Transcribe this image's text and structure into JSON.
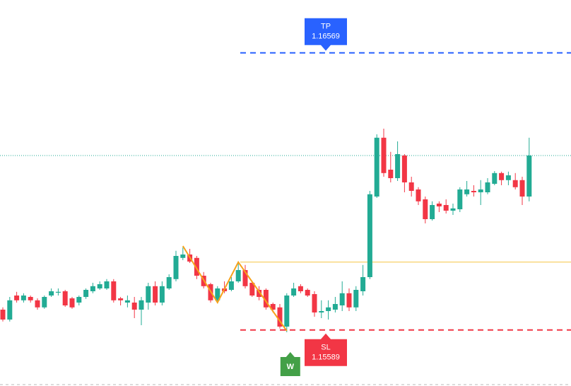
{
  "chart_data": {
    "type": "candlestick",
    "ylim": [
      1.15391,
      1.16756
    ],
    "up_color": "#22ab94",
    "down_color": "#f23645",
    "open": [
      1.15661,
      1.15626,
      1.15711,
      1.15694,
      1.15706,
      1.15694,
      1.15669,
      1.15711,
      1.15721,
      1.15726,
      1.15701,
      1.15686,
      1.15706,
      1.15726,
      1.15736,
      1.15736,
      1.15761,
      1.15701,
      1.15686,
      1.15686,
      1.15661,
      1.15686,
      1.15744,
      1.15686,
      1.15736,
      1.15769,
      1.15844,
      1.15856,
      1.15844,
      1.15781,
      1.15751,
      1.15694,
      1.15736,
      1.15731,
      1.15761,
      1.15801,
      1.15756,
      1.15731,
      1.15731,
      1.15681,
      1.15669,
      1.15601,
      1.15711,
      1.15744,
      1.15731,
      1.15716,
      1.15651,
      1.15656,
      1.15661,
      1.15676,
      1.15719,
      1.15669,
      1.15726,
      1.15776,
      1.16061,
      1.16269,
      1.16156,
      1.16126,
      1.16206,
      1.16111,
      1.16086,
      1.16051,
      1.15981,
      1.16036,
      1.16031,
      1.16011,
      1.16016,
      1.16069,
      1.16081,
      1.16076,
      1.16076,
      1.16106,
      1.16144,
      1.16119,
      1.16119,
      1.16119,
      1.16061
    ],
    "high": [
      1.15669,
      1.15706,
      1.15724,
      1.15719,
      1.15711,
      1.15701,
      1.15711,
      1.15736,
      1.15736,
      1.15731,
      1.15706,
      1.15711,
      1.15736,
      1.15756,
      1.15761,
      1.15769,
      1.15769,
      1.15706,
      1.15711,
      1.15706,
      1.15706,
      1.15756,
      1.15761,
      1.15761,
      1.15786,
      1.15869,
      1.15881,
      1.15876,
      1.15851,
      1.15794,
      1.15756,
      1.15744,
      1.15761,
      1.15776,
      1.15826,
      1.15819,
      1.15761,
      1.15744,
      1.15736,
      1.15686,
      1.15681,
      1.15719,
      1.15756,
      1.15751,
      1.15736,
      1.15726,
      1.15694,
      1.15694,
      1.15706,
      1.15761,
      1.15736,
      1.15744,
      1.15819,
      1.16081,
      1.16281,
      1.16301,
      1.16219,
      1.16256,
      1.16211,
      1.16131,
      1.16094,
      1.16061,
      1.16044,
      1.16044,
      1.16051,
      1.16036,
      1.16094,
      1.16116,
      1.16101,
      1.16119,
      1.16126,
      1.16151,
      1.16149,
      1.16149,
      1.16144,
      1.16131,
      1.16269
    ],
    "low": [
      1.15619,
      1.15619,
      1.15686,
      1.15686,
      1.15686,
      1.15661,
      1.15664,
      1.15706,
      1.15711,
      1.15671,
      1.15664,
      1.15676,
      1.15699,
      1.15719,
      1.15731,
      1.15731,
      1.15686,
      1.15676,
      1.15669,
      1.15631,
      1.15606,
      1.15661,
      1.15676,
      1.15676,
      1.15731,
      1.15761,
      1.15836,
      1.15826,
      1.15769,
      1.15736,
      1.15686,
      1.15686,
      1.15719,
      1.15726,
      1.15756,
      1.15736,
      1.15706,
      1.15694,
      1.15661,
      1.15651,
      1.15594,
      1.15581,
      1.15706,
      1.15719,
      1.15706,
      1.15636,
      1.15631,
      1.15626,
      1.15651,
      1.15656,
      1.15656,
      1.15656,
      1.15711,
      1.15769,
      1.16056,
      1.16131,
      1.16111,
      1.16116,
      1.16076,
      1.16061,
      1.16031,
      1.15966,
      1.15976,
      1.16006,
      1.16001,
      1.15996,
      1.16006,
      1.16061,
      1.16061,
      1.16031,
      1.16069,
      1.16101,
      1.16101,
      1.16101,
      1.16086,
      1.16031,
      1.16044
    ],
    "close": [
      1.15626,
      1.15694,
      1.15694,
      1.15711,
      1.15694,
      1.15669,
      1.15706,
      1.15726,
      1.15724,
      1.15676,
      1.15669,
      1.15706,
      1.15731,
      1.15744,
      1.15751,
      1.15761,
      1.15694,
      1.15694,
      1.15694,
      1.15661,
      1.15694,
      1.15744,
      1.15686,
      1.15744,
      1.15776,
      1.15851,
      1.15856,
      1.15831,
      1.15781,
      1.15744,
      1.15694,
      1.15736,
      1.15726,
      1.15761,
      1.15801,
      1.15744,
      1.15711,
      1.15706,
      1.15669,
      1.15661,
      1.15601,
      1.15711,
      1.15736,
      1.15726,
      1.15711,
      1.15651,
      1.15656,
      1.15669,
      1.15681,
      1.15719,
      1.15669,
      1.15731,
      1.15776,
      1.16069,
      1.16269,
      1.16144,
      1.16126,
      1.16211,
      1.16111,
      1.16081,
      1.16044,
      1.15981,
      1.16031,
      1.16026,
      1.16011,
      1.16019,
      1.16086,
      1.16086,
      1.16076,
      1.16086,
      1.16111,
      1.16144,
      1.16119,
      1.16136,
      1.16094,
      1.16061,
      1.16206
    ],
    "take_profit": {
      "label": "TP",
      "value": 1.16569,
      "color": "#2962ff"
    },
    "stop_loss": {
      "label": "SL",
      "value": 1.15589,
      "color": "#f23645"
    },
    "entry_line": {
      "value": 1.15829,
      "color": "#f5c542"
    },
    "pattern": {
      "label": "W",
      "color": "#f7a21b",
      "marker_color": "#43a047",
      "x": [
        26,
        31,
        34,
        41
      ],
      "values": [
        1.15886,
        1.15686,
        1.15829,
        1.15586
      ]
    }
  }
}
